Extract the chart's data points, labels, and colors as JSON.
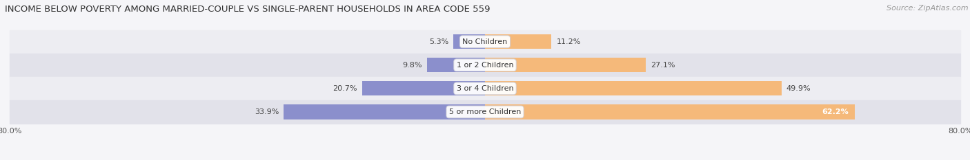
{
  "title": "INCOME BELOW POVERTY AMONG MARRIED-COUPLE VS SINGLE-PARENT HOUSEHOLDS IN AREA CODE 559",
  "source": "Source: ZipAtlas.com",
  "categories": [
    "No Children",
    "1 or 2 Children",
    "3 or 4 Children",
    "5 or more Children"
  ],
  "married_values": [
    5.3,
    9.8,
    20.7,
    33.9
  ],
  "single_values": [
    11.2,
    27.1,
    49.9,
    62.2
  ],
  "married_color": "#8b8fcc",
  "single_color": "#f5b97a",
  "row_bg_even": "#ededf2",
  "row_bg_odd": "#e2e2ea",
  "axis_min": -80.0,
  "axis_max": 80.0,
  "axis_label_left": "80.0%",
  "axis_label_right": "80.0%",
  "title_fontsize": 9.5,
  "source_fontsize": 8,
  "label_fontsize": 8,
  "value_fontsize": 8,
  "legend_fontsize": 9,
  "background_color": "#f5f5f8"
}
